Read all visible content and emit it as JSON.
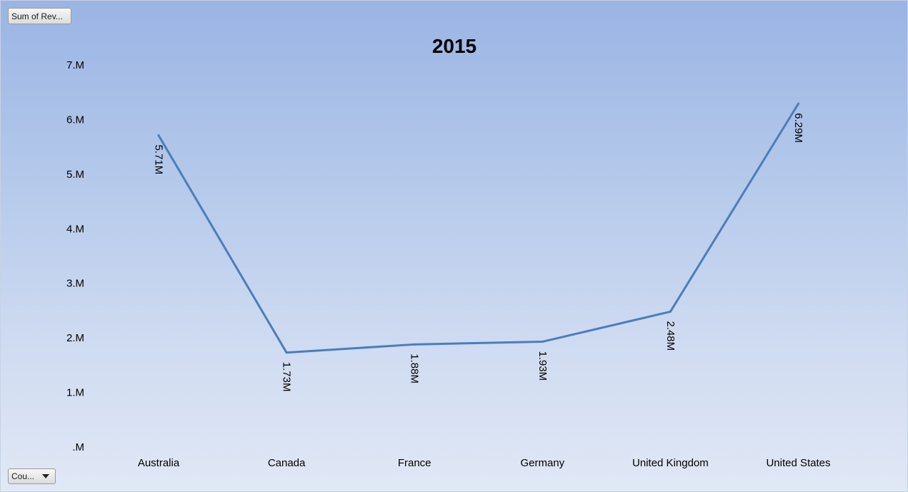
{
  "value_field_button": {
    "label": "Sum of Rev..."
  },
  "axis_field_button": {
    "label": "Cou..."
  },
  "chart_data": {
    "type": "line",
    "title": "2015",
    "xlabel": "",
    "ylabel": "",
    "categories": [
      "Australia",
      "Canada",
      "France",
      "Germany",
      "United Kingdom",
      "United States"
    ],
    "series": [
      {
        "values": [
          5.71,
          1.73,
          1.88,
          1.93,
          2.48,
          6.29
        ]
      }
    ],
    "data_labels": [
      "5.71M",
      "1.73M",
      "1.88M",
      "1.93M",
      "2.48M",
      "6.29M"
    ],
    "y_ticks": [
      0,
      1,
      2,
      3,
      4,
      5,
      6,
      7
    ],
    "y_tick_labels": [
      ".M",
      "1.M",
      "2.M",
      "3.M",
      "4.M",
      "5.M",
      "6.M",
      "7.M"
    ],
    "ylim": [
      0,
      7
    ],
    "grid": false,
    "legend": "none",
    "line_color": "#4a7ebb"
  }
}
